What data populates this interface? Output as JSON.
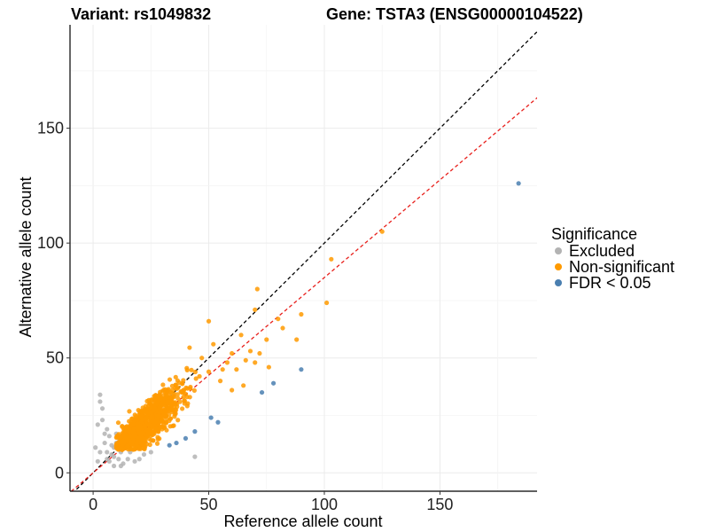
{
  "chart_data": {
    "type": "scatter",
    "title_left": "Variant: rs1049832",
    "title_right": "Gene: TSTA3 (ENSG00000104522)",
    "xlabel": "Reference allele count",
    "ylabel": "Alternative allele count",
    "xlim": [
      -10,
      192
    ],
    "ylim": [
      -8,
      195
    ],
    "xticks": [
      0,
      50,
      100,
      150
    ],
    "yticks": [
      0,
      50,
      100,
      150
    ],
    "grid": true,
    "legend": {
      "title": "Significance",
      "position": "right",
      "entries": [
        {
          "label": "Excluded",
          "color": "#b3b3b3"
        },
        {
          "label": "Non-significant",
          "color": "#ff9a00"
        },
        {
          "label": "FDR < 0.05",
          "color": "#4a7fb0"
        }
      ]
    },
    "reference_lines": [
      {
        "name": "identity",
        "slope": 1.0,
        "intercept": 0,
        "color": "#000000",
        "style": "dashed"
      },
      {
        "name": "fit",
        "slope": 0.85,
        "intercept": 0,
        "color": "#e8201c",
        "style": "dashed"
      }
    ],
    "series": [
      {
        "name": "Excluded",
        "color": "#b3b3b3",
        "points": [
          [
            3,
            34
          ],
          [
            3,
            31
          ],
          [
            4,
            28
          ],
          [
            2,
            21
          ],
          [
            1,
            11
          ],
          [
            3,
            9
          ],
          [
            5,
            13
          ],
          [
            6,
            9
          ],
          [
            7,
            5
          ],
          [
            8,
            8
          ],
          [
            6,
            6
          ],
          [
            9,
            11
          ],
          [
            10,
            13
          ],
          [
            9,
            7
          ],
          [
            11,
            6
          ],
          [
            13,
            4
          ],
          [
            15,
            6
          ],
          [
            16,
            9
          ],
          [
            12,
            9
          ],
          [
            14,
            12
          ],
          [
            7,
            16
          ],
          [
            8,
            12
          ],
          [
            10,
            17
          ],
          [
            5,
            17
          ],
          [
            6,
            19
          ],
          [
            44,
            7
          ],
          [
            20,
            6
          ],
          [
            22,
            8
          ],
          [
            18,
            5
          ],
          [
            25,
            9
          ],
          [
            9,
            3
          ],
          [
            11,
            15
          ],
          [
            4,
            23
          ],
          [
            2,
            5
          ],
          [
            12,
            3
          ]
        ]
      },
      {
        "name": "Non-significant",
        "color": "#ff9a00",
        "cluster": {
          "n": 900,
          "seed": 11
        },
        "points": [
          [
            125,
            105
          ],
          [
            103,
            93
          ],
          [
            101,
            74
          ],
          [
            90,
            69
          ],
          [
            88,
            58
          ],
          [
            82,
            63
          ],
          [
            80,
            67
          ],
          [
            75,
            58
          ],
          [
            71,
            80
          ],
          [
            70,
            71
          ],
          [
            72,
            52
          ],
          [
            68,
            53
          ],
          [
            66,
            49
          ],
          [
            64,
            60
          ],
          [
            60,
            52
          ],
          [
            58,
            48
          ],
          [
            56,
            45
          ],
          [
            55,
            40
          ],
          [
            52,
            56
          ],
          [
            50,
            66
          ],
          [
            50,
            44
          ],
          [
            47,
            50
          ],
          [
            46,
            42
          ],
          [
            62,
            45
          ],
          [
            65,
            38
          ],
          [
            76,
            46
          ],
          [
            70,
            48
          ],
          [
            60,
            36
          ]
        ]
      },
      {
        "name": "FDR < 0.05",
        "color": "#4a7fb0",
        "points": [
          [
            184,
            126
          ],
          [
            90,
            45
          ],
          [
            78,
            39
          ],
          [
            73,
            35
          ],
          [
            54,
            22
          ],
          [
            51,
            24
          ],
          [
            44,
            18
          ],
          [
            40,
            15
          ],
          [
            36,
            13
          ],
          [
            33,
            12
          ]
        ]
      }
    ]
  }
}
